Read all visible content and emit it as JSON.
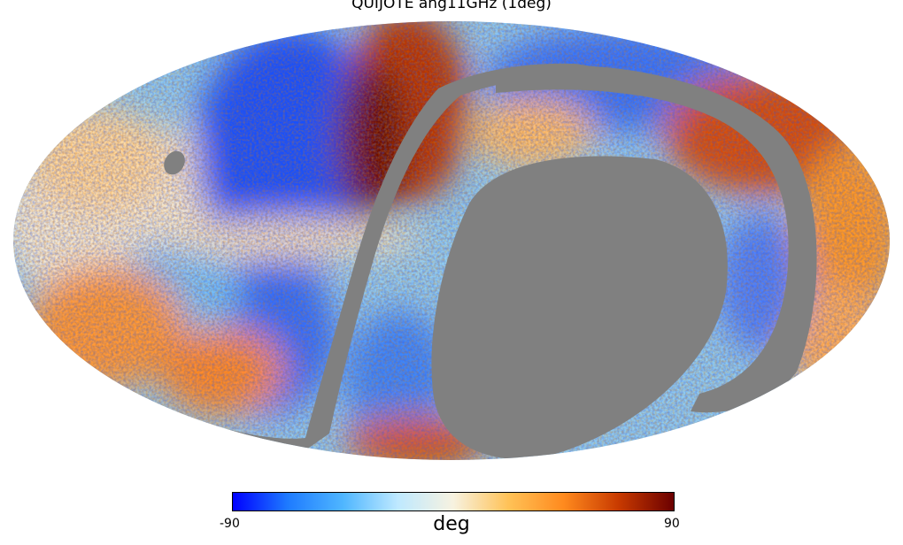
{
  "title": "QUIJOTE ang11GHz (1deg)",
  "projection": "mollweide",
  "masked_color": "#808080",
  "colorbar": {
    "min_label": "-90",
    "max_label": "90",
    "unit": "deg",
    "range": [
      -90,
      90
    ],
    "colormap": [
      "#0000ff",
      "#1e7bff",
      "#4fb6ff",
      "#bfe9ff",
      "#f7f2e0",
      "#ffc257",
      "#ff8a1e",
      "#c83a00",
      "#6b0000"
    ]
  }
}
